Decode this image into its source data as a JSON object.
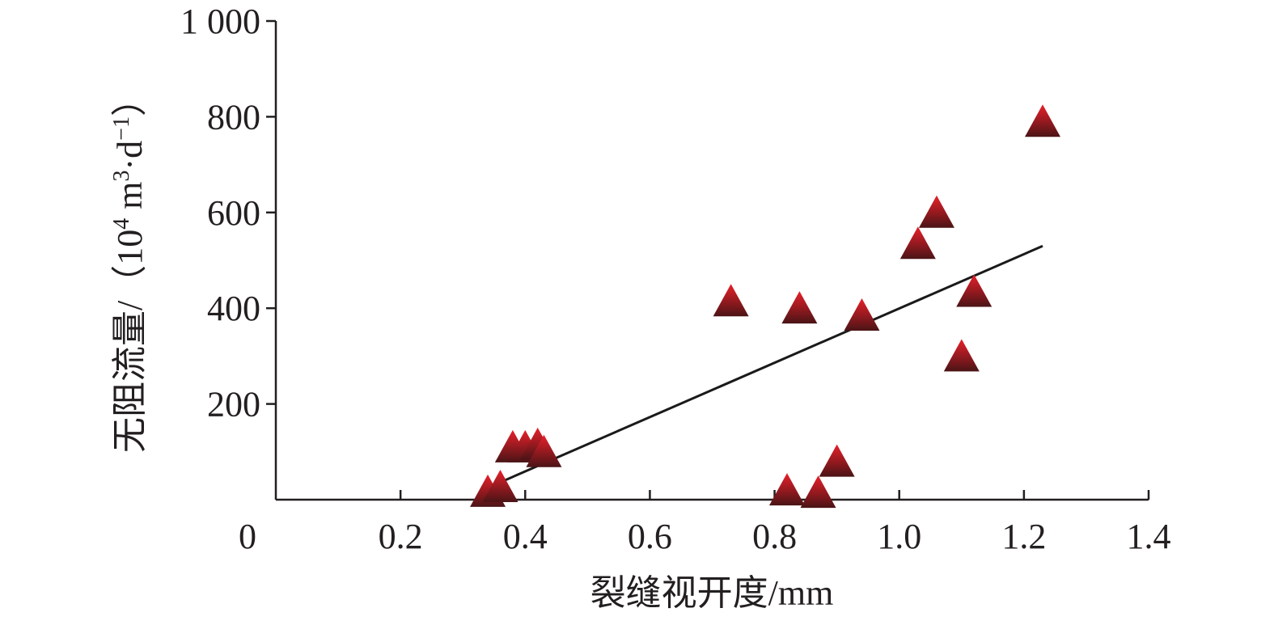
{
  "chart_data": {
    "type": "scatter",
    "xlabel": "裂缝视开度/mm",
    "ylabel": {
      "prefix": "无阻流量/（10",
      "sup1": "4",
      "mid1": " m",
      "sup2": "3",
      "mid2": "·d",
      "sup3": "−1",
      "suffix": "）"
    },
    "xlim": [
      0,
      1.4
    ],
    "ylim": [
      0,
      1000
    ],
    "x_ticks": [
      {
        "value": 0,
        "label": "0"
      },
      {
        "value": 0.2,
        "label": "0.2"
      },
      {
        "value": 0.4,
        "label": "0.4"
      },
      {
        "value": 0.6,
        "label": "0.6"
      },
      {
        "value": 0.8,
        "label": "0.8"
      },
      {
        "value": 1.0,
        "label": "1.0"
      },
      {
        "value": 1.2,
        "label": "1.2"
      },
      {
        "value": 1.4,
        "label": "1.4"
      }
    ],
    "y_ticks": [
      {
        "value": 200,
        "label": "200"
      },
      {
        "value": 400,
        "label": "400"
      },
      {
        "value": 600,
        "label": "600"
      },
      {
        "value": 800,
        "label": "800"
      },
      {
        "value": 1000,
        "label": "1 000"
      }
    ],
    "series": [
      {
        "marker": "triangle",
        "color_light": "#e8202a",
        "color_dark": "#4a1416",
        "points": [
          {
            "x": 0.34,
            "y": 12
          },
          {
            "x": 0.36,
            "y": 22
          },
          {
            "x": 0.38,
            "y": 105
          },
          {
            "x": 0.4,
            "y": 105
          },
          {
            "x": 0.42,
            "y": 110
          },
          {
            "x": 0.43,
            "y": 95
          },
          {
            "x": 0.73,
            "y": 410
          },
          {
            "x": 0.82,
            "y": 15
          },
          {
            "x": 0.84,
            "y": 395
          },
          {
            "x": 0.87,
            "y": 10
          },
          {
            "x": 0.9,
            "y": 75
          },
          {
            "x": 0.94,
            "y": 380
          },
          {
            "x": 1.03,
            "y": 530
          },
          {
            "x": 1.06,
            "y": 595
          },
          {
            "x": 1.1,
            "y": 295
          },
          {
            "x": 1.12,
            "y": 430
          },
          {
            "x": 1.23,
            "y": 785
          }
        ]
      }
    ],
    "trendline": {
      "x": [
        0.34,
        1.23
      ],
      "y": [
        25,
        530
      ],
      "color": "#1a1a1a"
    },
    "grid": false,
    "legend": "none"
  }
}
